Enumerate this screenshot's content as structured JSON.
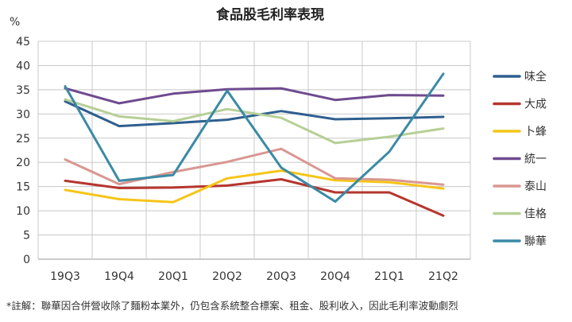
{
  "chart_data": {
    "type": "line",
    "title": "食品股毛利率表現",
    "ylabel": "%",
    "xlabel": "",
    "ylim": [
      0,
      45
    ],
    "yticks": [
      0,
      5,
      10,
      15,
      20,
      25,
      30,
      35,
      40,
      45
    ],
    "grid": true,
    "legend_position": "right",
    "categories": [
      "19Q3",
      "19Q4",
      "20Q1",
      "20Q2",
      "20Q3",
      "20Q4",
      "21Q1",
      "21Q2"
    ],
    "series": [
      {
        "name": "味全",
        "color": "#2f5f8f",
        "values": [
          32.6,
          27.5,
          28.1,
          28.8,
          30.6,
          28.9,
          29.1,
          29.4
        ]
      },
      {
        "name": "大成",
        "color": "#b5362f",
        "values": [
          16.2,
          14.7,
          14.8,
          15.2,
          16.5,
          13.8,
          13.8,
          9.0
        ]
      },
      {
        "name": "卜蜂",
        "color": "#f5c518",
        "values": [
          14.3,
          12.4,
          11.8,
          16.7,
          18.3,
          16.3,
          15.9,
          14.6
        ]
      },
      {
        "name": "統一",
        "color": "#6e4a8f",
        "values": [
          35.3,
          32.2,
          34.2,
          35.1,
          35.3,
          32.9,
          33.9,
          33.8
        ]
      },
      {
        "name": "泰山",
        "color": "#d99792",
        "values": [
          20.6,
          15.5,
          18.0,
          20.1,
          22.8,
          16.7,
          16.4,
          15.4
        ]
      },
      {
        "name": "佳格",
        "color": "#b7cf96",
        "values": [
          33.0,
          29.5,
          28.5,
          31.0,
          29.2,
          24.0,
          25.3,
          27.0
        ]
      },
      {
        "name": "聯華",
        "color": "#3b8aa5",
        "values": [
          35.7,
          16.2,
          17.4,
          34.8,
          18.9,
          11.9,
          22.2,
          38.3
        ]
      }
    ],
    "footnote": "*註解：聯華因合併營收除了麵粉本業外，仍包含系統整合標案、租金、股利收入，因此毛利率波動劇烈"
  }
}
